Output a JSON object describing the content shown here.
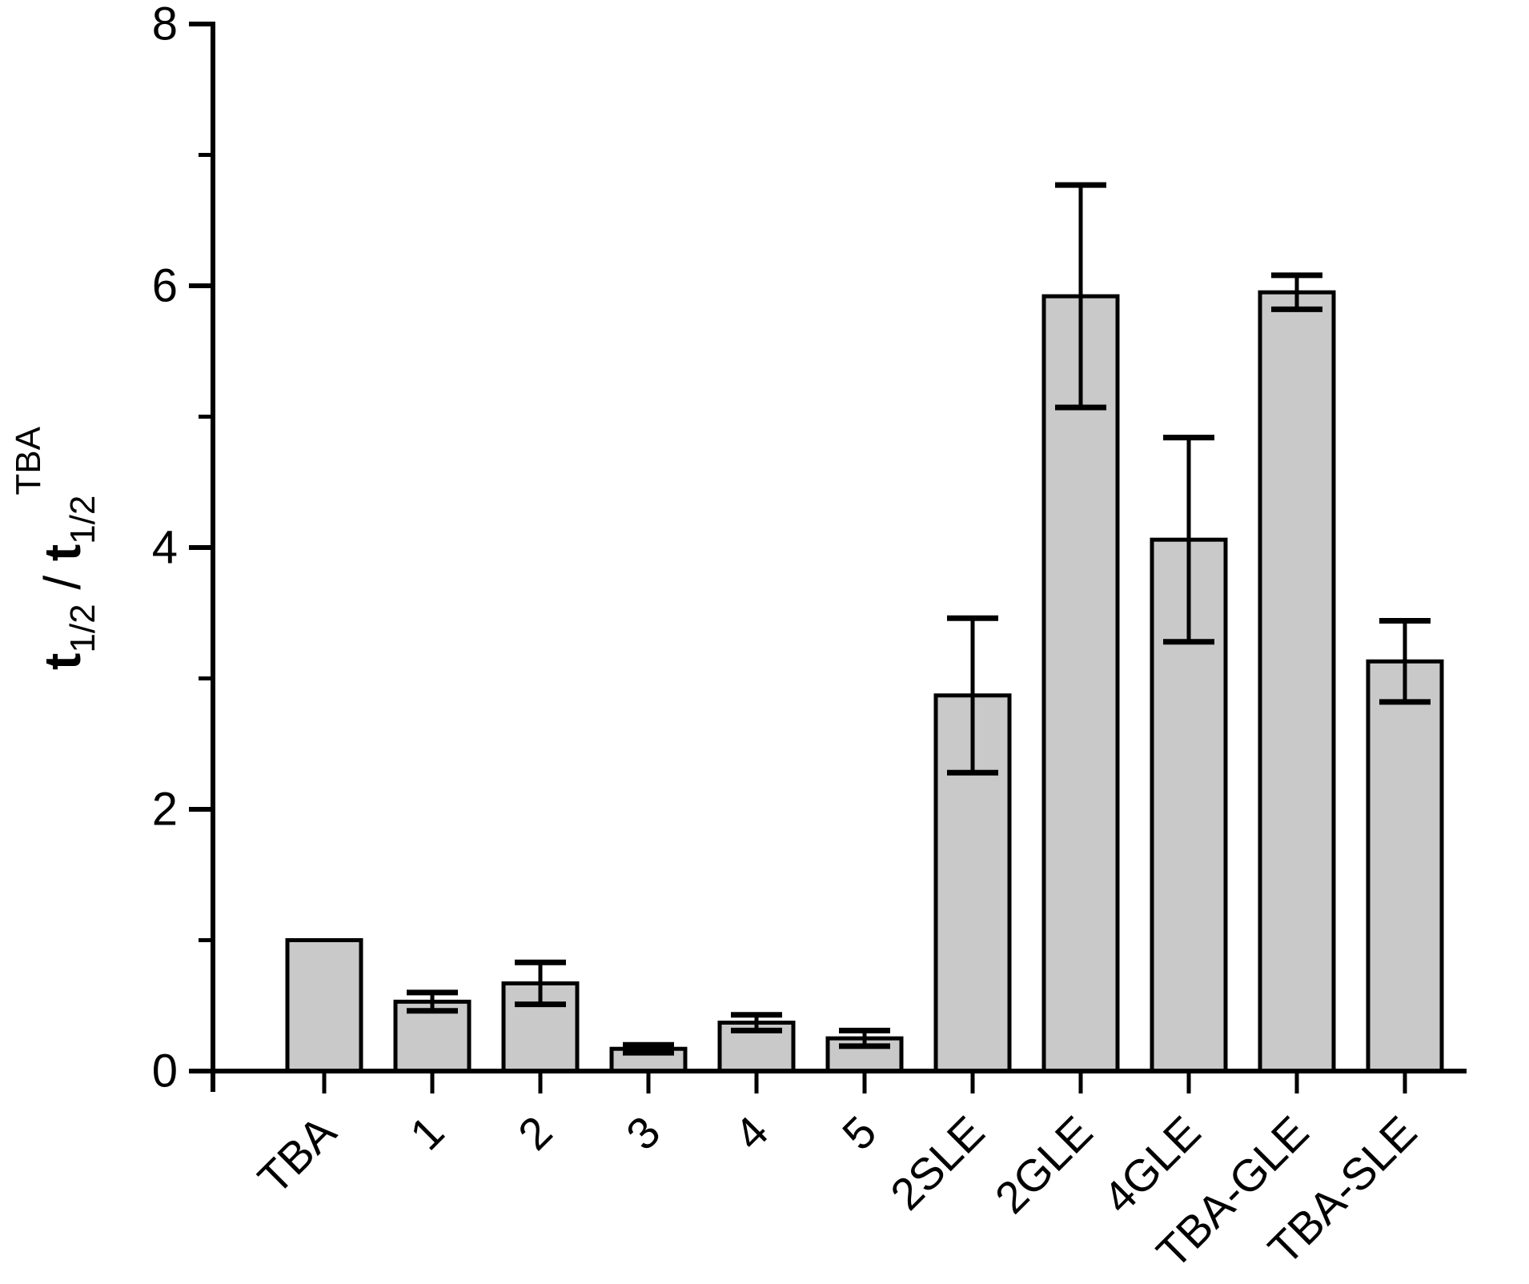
{
  "figure": {
    "background": "#ffffff",
    "bar_fill": "#c9c9c9",
    "bar_stroke": "#000000",
    "axis_color": "#000000"
  },
  "chart_data": {
    "type": "bar",
    "title": "",
    "xlabel": "",
    "ylabel": "t1/2 / t1/2 TBA",
    "ylabel_segments": [
      {
        "text": "t",
        "style": "bold"
      },
      {
        "text": "1/2",
        "style": "sub"
      },
      {
        "text": " / ",
        "style": "normal"
      },
      {
        "text": "t",
        "style": "bold"
      },
      {
        "text": "1/2",
        "style": "sub"
      },
      {
        "text": "TBA",
        "style": "sup"
      }
    ],
    "categories": [
      "TBA",
      "1",
      "2",
      "3",
      "4",
      "5",
      "2SLE",
      "2GLE",
      "4GLE",
      "TBA-GLE",
      "TBA-SLE"
    ],
    "values": [
      1.0,
      0.53,
      0.67,
      0.17,
      0.37,
      0.25,
      2.87,
      5.92,
      4.06,
      5.95,
      3.13
    ],
    "errors": [
      null,
      0.07,
      0.16,
      0.03,
      0.06,
      0.06,
      0.59,
      0.85,
      0.78,
      0.13,
      0.31
    ],
    "ylim": [
      0,
      8
    ],
    "y_major_ticks": [
      0,
      2,
      4,
      6,
      8
    ],
    "y_minor_ticks": [
      1,
      3,
      5,
      7
    ],
    "grid": false,
    "legend": null,
    "error_bar_style": "symmetric with caps",
    "x_label_rotation_deg": -45
  }
}
